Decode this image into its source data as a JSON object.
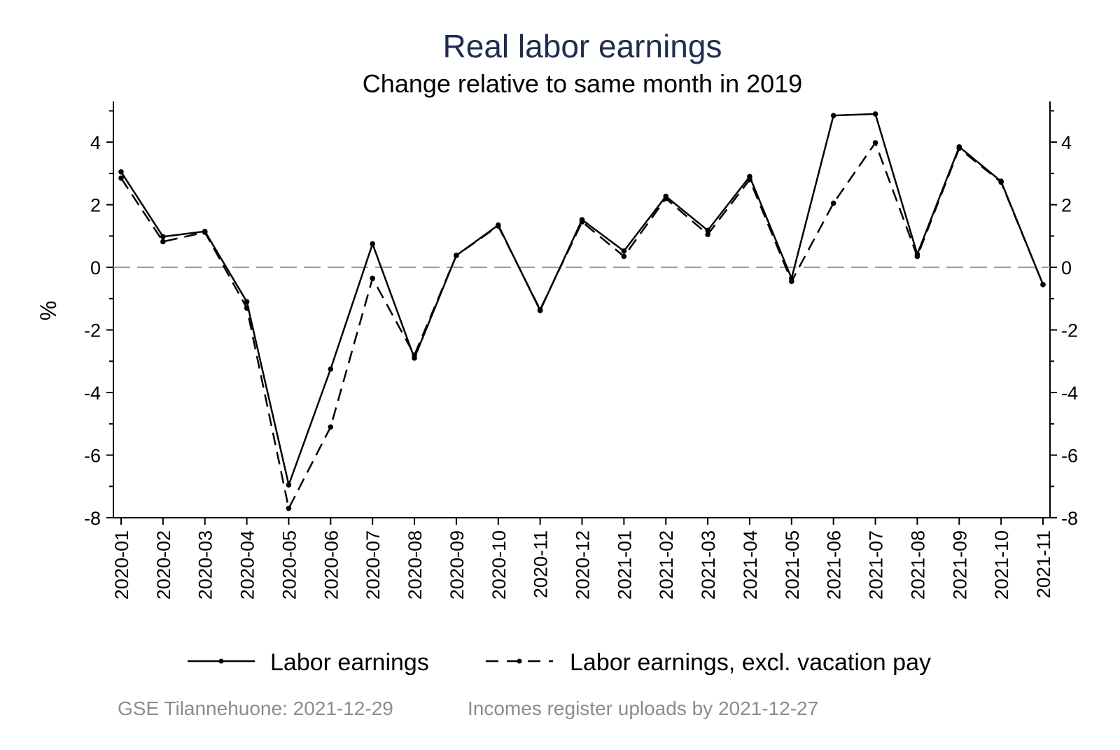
{
  "chart_data": {
    "type": "line",
    "title": "Real labor earnings",
    "subtitle": "Change relative to same month in 2019",
    "ylabel": "%",
    "xlabel": "",
    "ylim": [
      -8,
      5.3
    ],
    "y_ticks": [
      -8,
      -6,
      -4,
      -2,
      0,
      2,
      4
    ],
    "y_tick_labels": [
      "-8",
      "-6",
      "-4",
      "-2",
      "0",
      "2",
      "4"
    ],
    "y_minor_ticks": [
      -7,
      -5,
      -3,
      -1,
      1,
      3,
      5
    ],
    "right_axis_mirror": true,
    "zero_reference_line": true,
    "grid": false,
    "legend_position": "bottom",
    "categories": [
      "2020-01",
      "2020-02",
      "2020-03",
      "2020-04",
      "2020-05",
      "2020-06",
      "2020-07",
      "2020-08",
      "2020-09",
      "2020-10",
      "2020-11",
      "2020-12",
      "2021-01",
      "2021-02",
      "2021-03",
      "2021-04",
      "2021-05",
      "2021-06",
      "2021-07",
      "2021-08",
      "2021-09",
      "2021-10",
      "2021-11"
    ],
    "series": [
      {
        "name": "Labor earnings",
        "style": "solid",
        "values": [
          3.05,
          0.98,
          1.15,
          -1.1,
          -6.95,
          -3.25,
          0.75,
          -2.9,
          0.38,
          1.35,
          -1.38,
          1.52,
          0.52,
          2.27,
          1.18,
          2.9,
          -0.35,
          4.85,
          4.9,
          0.42,
          3.85,
          2.75,
          -0.55
        ]
      },
      {
        "name": "Labor earnings, excl. vacation pay",
        "style": "dashed",
        "values": [
          2.85,
          0.82,
          1.12,
          -1.3,
          -7.7,
          -5.1,
          -0.35,
          -2.8,
          0.38,
          1.32,
          -1.35,
          1.45,
          0.35,
          2.2,
          1.05,
          2.8,
          -0.45,
          2.05,
          3.98,
          0.35,
          3.8,
          2.72,
          -0.55
        ]
      }
    ],
    "colors": {
      "series": "#000000",
      "title": "#1f2d4e",
      "reference_line": "#999999",
      "footer": "#8c8c8c"
    }
  },
  "footer": {
    "left": "GSE Tilannehuone: 2021-12-29",
    "right": "Incomes register uploads by 2021-12-27"
  }
}
